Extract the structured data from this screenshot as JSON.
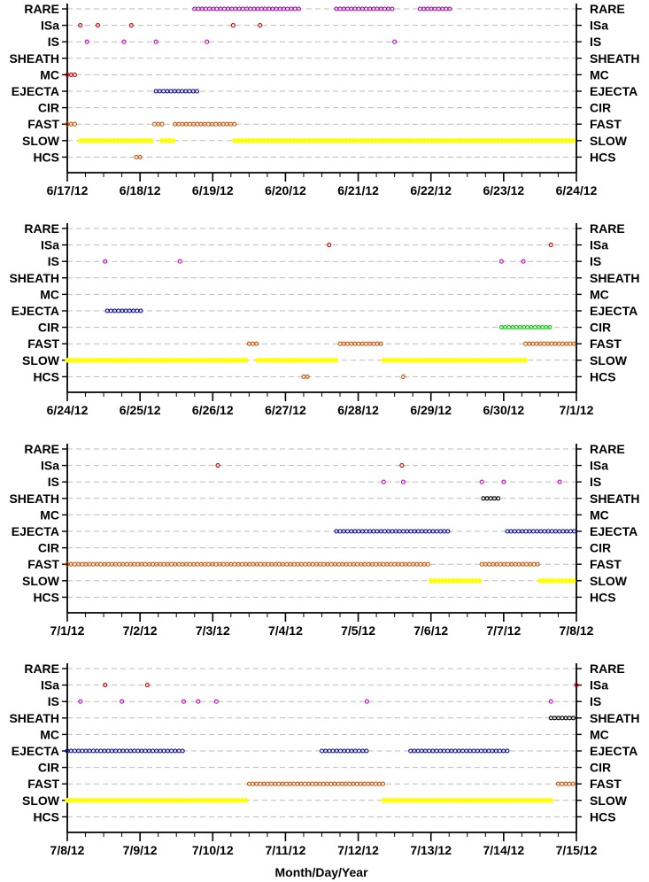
{
  "xlabel": "Month/Day/Year",
  "categories": [
    "RARE",
    "ISa",
    "IS",
    "SHEATH",
    "MC",
    "EJECTA",
    "CIR",
    "FAST",
    "SLOW",
    "HCS"
  ],
  "colors": {
    "RARE": "#9900aa",
    "ISa": "#cc0000",
    "IS": "#cc00cc",
    "SHEATH": "#000000",
    "MC": "#cc0000",
    "EJECTA": "#000099",
    "CIR": "#00cc00",
    "FAST": "#cc5500",
    "SLOW": "#ffff00",
    "HCS": "#cc5500",
    "grid": "#bbbbbb"
  },
  "chart_data": [
    {
      "type": "scatter",
      "xlim": [
        0,
        7
      ],
      "xticks": [
        "6/17/12",
        "6/18/12",
        "6/19/12",
        "6/20/12",
        "6/21/12",
        "6/22/12",
        "6/23/12",
        "6/24/12"
      ],
      "series": [
        {
          "name": "RARE",
          "ranges": [
            [
              1.75,
              3.2
            ],
            [
              3.7,
              4.5
            ],
            [
              4.85,
              5.3
            ]
          ],
          "points": []
        },
        {
          "name": "ISa",
          "ranges": [],
          "points": [
            0.18,
            0.42,
            0.88,
            2.28,
            2.65
          ]
        },
        {
          "name": "IS",
          "ranges": [],
          "points": [
            0.27,
            0.78,
            1.22,
            1.92,
            4.5
          ]
        },
        {
          "name": "SHEATH",
          "ranges": [],
          "points": []
        },
        {
          "name": "MC",
          "ranges": [
            [
              0.0,
              0.15
            ]
          ],
          "points": []
        },
        {
          "name": "EJECTA",
          "ranges": [
            [
              1.22,
              1.8
            ]
          ],
          "points": []
        },
        {
          "name": "CIR",
          "ranges": [],
          "points": []
        },
        {
          "name": "FAST",
          "ranges": [
            [
              0.0,
              0.15
            ],
            [
              1.2,
              1.35
            ],
            [
              1.48,
              2.3
            ]
          ],
          "points": []
        },
        {
          "name": "SLOW",
          "ranges": [
            [
              0.18,
              1.2
            ],
            [
              1.3,
              1.5
            ],
            [
              2.3,
              7.0
            ]
          ],
          "points": []
        },
        {
          "name": "HCS",
          "ranges": [
            [
              0.95,
              1.05
            ]
          ],
          "points": []
        }
      ]
    },
    {
      "type": "scatter",
      "xlim": [
        0,
        7
      ],
      "xticks": [
        "6/24/12",
        "6/25/12",
        "6/26/12",
        "6/27/12",
        "6/28/12",
        "6/29/12",
        "6/30/12",
        "7/1/12"
      ],
      "series": [
        {
          "name": "RARE",
          "ranges": [],
          "points": []
        },
        {
          "name": "ISa",
          "ranges": [],
          "points": [
            3.6,
            6.65
          ]
        },
        {
          "name": "IS",
          "ranges": [],
          "points": [
            0.52,
            1.55,
            5.97,
            6.27
          ]
        },
        {
          "name": "SHEATH",
          "ranges": [],
          "points": []
        },
        {
          "name": "MC",
          "ranges": [],
          "points": []
        },
        {
          "name": "EJECTA",
          "ranges": [
            [
              0.55,
              1.02
            ]
          ],
          "points": []
        },
        {
          "name": "CIR",
          "ranges": [
            [
              5.97,
              6.65
            ]
          ],
          "points": []
        },
        {
          "name": "FAST",
          "ranges": [
            [
              2.5,
              2.65
            ],
            [
              3.75,
              4.35
            ],
            [
              6.3,
              7.0
            ]
          ],
          "points": []
        },
        {
          "name": "SLOW",
          "ranges": [
            [
              0.0,
              2.5
            ],
            [
              2.62,
              3.72
            ],
            [
              4.35,
              6.3
            ]
          ],
          "points": []
        },
        {
          "name": "HCS",
          "ranges": [
            [
              3.25,
              3.35
            ]
          ],
          "points": [
            4.62
          ]
        }
      ]
    },
    {
      "type": "scatter",
      "xlim": [
        0,
        7
      ],
      "xticks": [
        "7/1/12",
        "7/2/12",
        "7/3/12",
        "7/4/12",
        "7/5/12",
        "7/6/12",
        "7/7/12",
        "7/8/12"
      ],
      "series": [
        {
          "name": "RARE",
          "ranges": [],
          "points": []
        },
        {
          "name": "ISa",
          "ranges": [],
          "points": [
            2.07,
            4.6
          ]
        },
        {
          "name": "IS",
          "ranges": [],
          "points": [
            4.35,
            4.62,
            5.7,
            6.0,
            6.77
          ]
        },
        {
          "name": "SHEATH",
          "ranges": [
            [
              5.72,
              5.95
            ]
          ],
          "points": []
        },
        {
          "name": "MC",
          "ranges": [],
          "points": []
        },
        {
          "name": "EJECTA",
          "ranges": [
            [
              3.7,
              5.25
            ],
            [
              6.05,
              7.0
            ]
          ],
          "points": []
        },
        {
          "name": "CIR",
          "ranges": [],
          "points": []
        },
        {
          "name": "FAST",
          "ranges": [
            [
              0.0,
              5.0
            ],
            [
              5.7,
              6.5
            ]
          ],
          "points": []
        },
        {
          "name": "SLOW",
          "ranges": [
            [
              5.0,
              5.7
            ],
            [
              6.5,
              7.0
            ]
          ],
          "points": []
        },
        {
          "name": "HCS",
          "ranges": [],
          "points": []
        }
      ]
    },
    {
      "type": "scatter",
      "xlim": [
        0,
        7
      ],
      "xticks": [
        "7/8/12",
        "7/9/12",
        "7/10/12",
        "7/11/12",
        "7/12/12",
        "7/13/12",
        "7/14/12",
        "7/15/12"
      ],
      "series": [
        {
          "name": "RARE",
          "ranges": [],
          "points": []
        },
        {
          "name": "ISa",
          "ranges": [],
          "points": [
            0.52,
            1.1,
            7.0
          ]
        },
        {
          "name": "IS",
          "ranges": [],
          "points": [
            0.18,
            0.75,
            1.6,
            1.8,
            2.05,
            4.12,
            6.65
          ]
        },
        {
          "name": "SHEATH",
          "ranges": [
            [
              6.65,
              7.0
            ]
          ],
          "points": []
        },
        {
          "name": "MC",
          "ranges": [],
          "points": []
        },
        {
          "name": "EJECTA",
          "ranges": [
            [
              0.0,
              1.6
            ],
            [
              3.5,
              4.12
            ],
            [
              4.72,
              6.1
            ]
          ],
          "points": []
        },
        {
          "name": "CIR",
          "ranges": [],
          "points": []
        },
        {
          "name": "FAST",
          "ranges": [
            [
              2.5,
              4.35
            ],
            [
              6.75,
              7.0
            ]
          ],
          "points": []
        },
        {
          "name": "SLOW",
          "ranges": [
            [
              0.0,
              2.5
            ],
            [
              4.35,
              6.7
            ]
          ],
          "points": []
        },
        {
          "name": "HCS",
          "ranges": [],
          "points": []
        }
      ]
    }
  ]
}
